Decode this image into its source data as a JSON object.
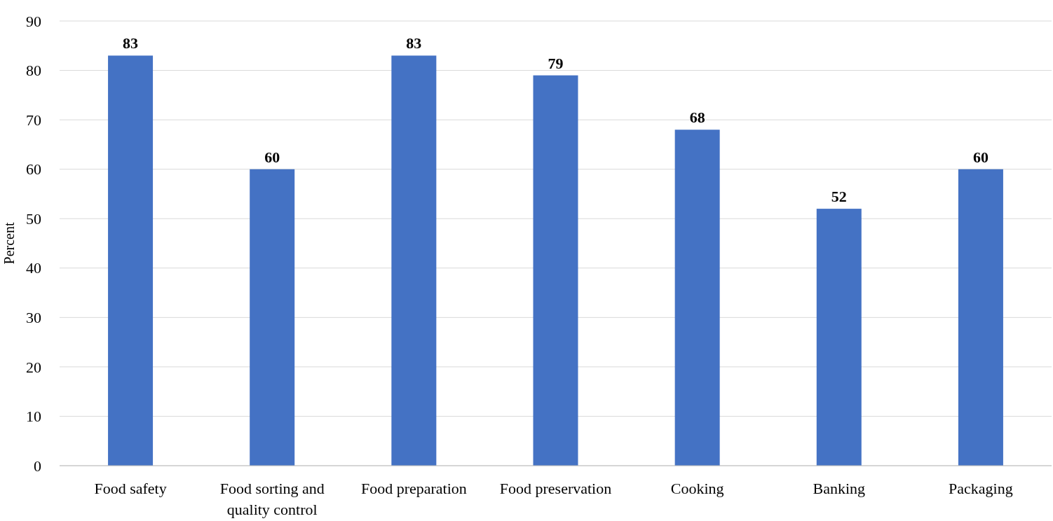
{
  "chart_data": {
    "type": "bar",
    "ylabel": "Percent",
    "categories": [
      "Food safety",
      "Food sorting and quality control",
      "Food preparation",
      "Food preservation",
      "Cooking",
      "Banking",
      "Packaging"
    ],
    "values": [
      83,
      60,
      83,
      79,
      68,
      52,
      60
    ],
    "color": "#4472c4",
    "ylim": [
      0,
      90
    ],
    "yticks": [
      0,
      10,
      20,
      30,
      40,
      50,
      60,
      70,
      80,
      90
    ],
    "grid": "y",
    "data_labels": true
  }
}
